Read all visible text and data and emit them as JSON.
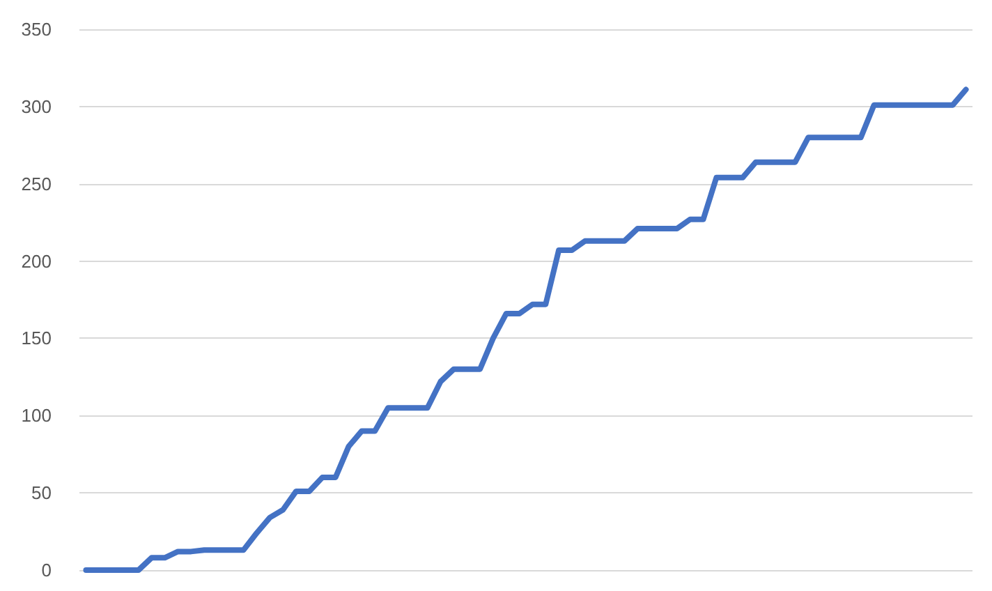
{
  "chart_data": {
    "type": "line",
    "categories": [
      null,
      null,
      null,
      null,
      null,
      null,
      null,
      null,
      null,
      null,
      null,
      null,
      null,
      null,
      null,
      null,
      null,
      null,
      null,
      null,
      null,
      null,
      null,
      null,
      null,
      null,
      null,
      null,
      null,
      null,
      null,
      null,
      null,
      null,
      null,
      null,
      null,
      null,
      null,
      null,
      null,
      null,
      null,
      null,
      null,
      null,
      null,
      null,
      null,
      null,
      null,
      null,
      null,
      null,
      null,
      null,
      null,
      null,
      null,
      null,
      null,
      null,
      null,
      null,
      null,
      null,
      null,
      null
    ],
    "series": [
      {
        "color": "#4472c4",
        "values": [
          0,
          0,
          0,
          0,
          0,
          8,
          8,
          12,
          12,
          13,
          13,
          13,
          13,
          24,
          34,
          39,
          51,
          51,
          60,
          60,
          80,
          90,
          90,
          105,
          105,
          105,
          105,
          122,
          130,
          130,
          130,
          150,
          166,
          166,
          172,
          172,
          207,
          207,
          213,
          213,
          213,
          213,
          221,
          221,
          221,
          221,
          227,
          227,
          254,
          254,
          254,
          264,
          264,
          264,
          264,
          280,
          280,
          280,
          280,
          280,
          301,
          301,
          301,
          301,
          301,
          301,
          301,
          311
        ]
      }
    ],
    "ylim": [
      0,
      350
    ],
    "yticks": [
      0,
      50,
      100,
      150,
      200,
      250,
      300,
      350
    ],
    "grid": "y",
    "marker": "none",
    "line_style": "solid"
  }
}
